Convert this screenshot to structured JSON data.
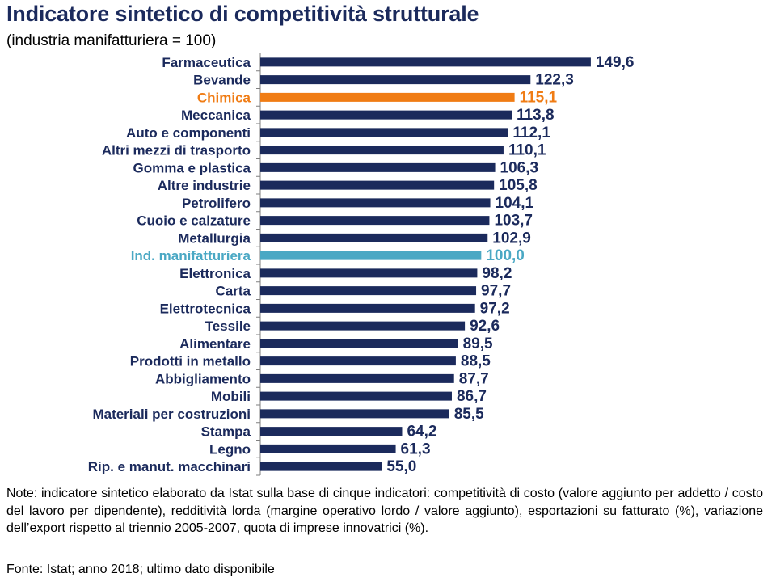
{
  "title": "Indicatore sintetico di competitività strutturale",
  "subtitle": "(industria manifatturiera = 100)",
  "chart_data": {
    "type": "bar",
    "orientation": "horizontal",
    "categories": [
      "Farmaceutica",
      "Bevande",
      "Chimica",
      "Meccanica",
      "Auto e componenti",
      "Altri mezzi di trasporto",
      "Gomma e plastica",
      "Altre industrie",
      "Petrolifero",
      "Cuoio e calzature",
      "Metallurgia",
      "Ind. manifatturiera",
      "Elettronica",
      "Carta",
      "Elettrotecnica",
      "Tessile",
      "Alimentare",
      "Prodotti in metallo",
      "Abbigliamento",
      "Mobili",
      "Materiali  per costruzioni",
      "Stampa",
      "Legno",
      "Rip. e manut. macchinari"
    ],
    "values": [
      149.6,
      122.3,
      115.1,
      113.8,
      112.1,
      110.1,
      106.3,
      105.8,
      104.1,
      103.7,
      102.9,
      100.0,
      98.2,
      97.7,
      97.2,
      92.6,
      89.5,
      88.5,
      87.7,
      86.7,
      85.5,
      64.2,
      61.3,
      55.0
    ],
    "value_labels": [
      "149,6",
      "122,3",
      "115,1",
      "113,8",
      "112,1",
      "110,1",
      "106,3",
      "105,8",
      "104,1",
      "103,7",
      "102,9",
      "100,0",
      "98,2",
      "97,7",
      "97,2",
      "92,6",
      "89,5",
      "88,5",
      "87,7",
      "86,7",
      "85,5",
      "64,2",
      "61,3",
      "55,0"
    ],
    "highlights": {
      "Chimica": "#f07c14",
      "Ind. manifatturiera": "#4aa8c4"
    },
    "default_color": "#1b2a5c",
    "xlim": [
      0,
      150
    ],
    "grid": false,
    "xlabel": "",
    "ylabel": ""
  },
  "notes": "Note: indicatore sintetico elaborato da Istat sulla base di cinque indicatori: competitività di costo (valore aggiunto per addetto / costo del lavoro per dipendente), redditività lorda (margine operativo lordo / valore aggiunto), esportazioni su fatturato (%), variazione dell’export rispetto al triennio 2005-2007, quota di imprese innovatrici (%).",
  "source": "Fonte: Istat; anno 2018; ultimo dato disponibile"
}
